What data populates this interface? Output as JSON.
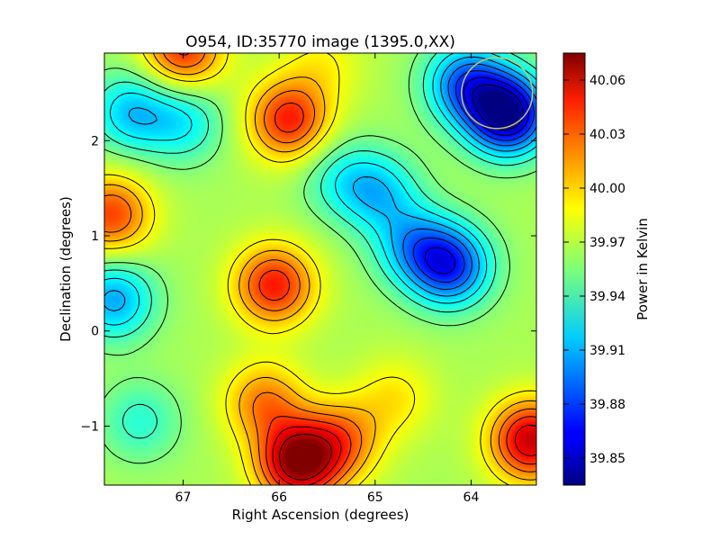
{
  "chart_data": {
    "type": "heatmap",
    "title": "O954, ID:35770 image (1395.0,XX)",
    "xlabel": "Right Ascension (degrees)",
    "ylabel": "Declination (degrees)",
    "xlim": [
      67.82,
      63.32
    ],
    "ylim": [
      -1.62,
      2.92
    ],
    "x_ticks": [
      67,
      66,
      65,
      64
    ],
    "x_tick_labels": [
      "67",
      "66",
      "65",
      "64"
    ],
    "y_ticks": [
      -1,
      0,
      1,
      2
    ],
    "y_tick_labels": [
      "−1",
      "0",
      "1",
      "2"
    ],
    "grid": false,
    "contours": true,
    "colormap": "jet",
    "colorbar": {
      "label": "Power in Kelvin",
      "range": [
        39.835,
        40.075
      ],
      "ticks": [
        39.85,
        39.88,
        39.91,
        39.94,
        39.97,
        40.0,
        40.03,
        40.06
      ],
      "tick_labels": [
        "39.85",
        "39.88",
        "39.91",
        "39.94",
        "39.97",
        "40.00",
        "40.03",
        "40.06"
      ]
    },
    "base_level": 39.965,
    "features": [
      {
        "ra": 63.62,
        "dec": 2.28,
        "value": 39.838
      },
      {
        "ra": 64.05,
        "dec": 2.6,
        "value": 39.89
      },
      {
        "ra": 64.22,
        "dec": 0.68,
        "value": 39.877
      },
      {
        "ra": 64.6,
        "dec": 0.9,
        "value": 39.915
      },
      {
        "ra": 64.95,
        "dec": 1.45,
        "value": 39.92
      },
      {
        "ra": 65.35,
        "dec": 1.6,
        "value": 39.935
      },
      {
        "ra": 67.55,
        "dec": 2.3,
        "value": 39.915
      },
      {
        "ra": 67.0,
        "dec": 2.2,
        "value": 39.925
      },
      {
        "ra": 67.72,
        "dec": 0.33,
        "value": 39.905
      },
      {
        "ra": 67.45,
        "dec": -0.95,
        "value": 39.935
      },
      {
        "ra": 67.75,
        "dec": 1.22,
        "value": 40.03
      },
      {
        "ra": 65.9,
        "dec": 2.22,
        "value": 40.038
      },
      {
        "ra": 67.0,
        "dec": 2.95,
        "value": 40.035
      },
      {
        "ra": 66.05,
        "dec": 0.48,
        "value": 40.04
      },
      {
        "ra": 65.8,
        "dec": -1.38,
        "value": 40.072
      },
      {
        "ra": 66.15,
        "dec": -0.75,
        "value": 40.015
      },
      {
        "ra": 65.35,
        "dec": -1.15,
        "value": 40.015
      },
      {
        "ra": 63.38,
        "dec": -1.15,
        "value": 40.058
      },
      {
        "ra": 65.55,
        "dec": 2.8,
        "value": 39.985
      },
      {
        "ra": 64.8,
        "dec": -0.7,
        "value": 39.99
      }
    ],
    "contour_levels": [
      39.85,
      39.865,
      39.88,
      39.895,
      39.91,
      39.925,
      39.94,
      39.955,
      39.985,
      40.0,
      40.015,
      40.03,
      40.045,
      40.06
    ],
    "beam_circle": {
      "ra": 63.73,
      "dec": 2.5,
      "radius_deg": 0.37,
      "color": "#c8c85a"
    }
  }
}
